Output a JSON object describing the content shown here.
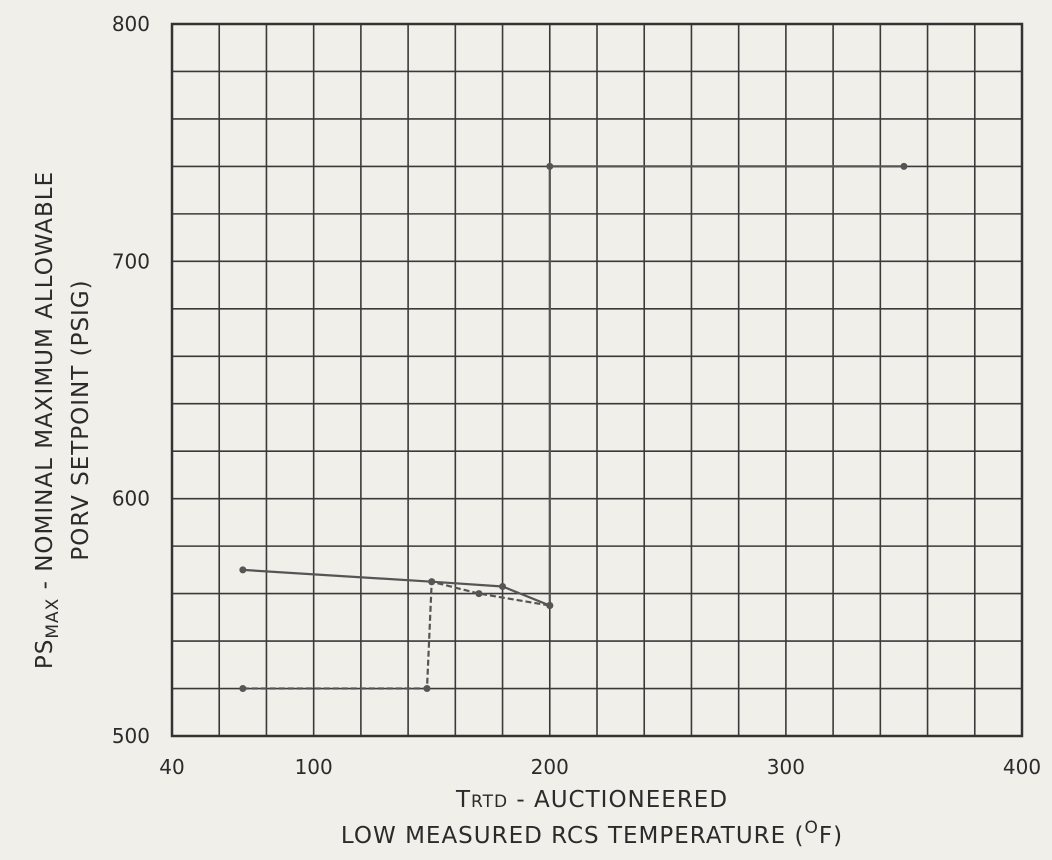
{
  "chart_data": {
    "type": "line",
    "x_axis": {
      "min": 40,
      "max": 400,
      "tick_labels": [
        {
          "value": 40,
          "label": "40"
        },
        {
          "value": 100,
          "label": "100"
        },
        {
          "value": 200,
          "label": "200"
        },
        {
          "value": 300,
          "label": "300"
        },
        {
          "value": 400,
          "label": "400"
        }
      ],
      "label_line1": {
        "lead": "T",
        "rest": "RTD",
        "tail": " - AUCTIONEERED"
      },
      "label_line2": {
        "text": "LOW MEASURED RCS TEMPERATURE (",
        "superscript": "O",
        "unit": "F",
        "close": ")"
      }
    },
    "y_axis": {
      "min": 500,
      "max": 800,
      "tick_labels": [
        {
          "value": 500,
          "label": "500"
        },
        {
          "value": 600,
          "label": "600"
        },
        {
          "value": 700,
          "label": "700"
        },
        {
          "value": 800,
          "label": "800"
        }
      ],
      "label_line1": {
        "lead": "PS",
        "subscript": "MAX",
        "tail": " - NOMINAL MAXIMUM ALLOWABLE"
      },
      "label_line2": {
        "text": "PORV SETPOINT (PSIG)"
      }
    },
    "grid": true,
    "grid_x_step": 20,
    "grid_y_step": 20,
    "series": [
      {
        "style": "solid",
        "points": [
          {
            "x": 70,
            "y": 570
          },
          {
            "x": 150,
            "y": 565
          },
          {
            "x": 180,
            "y": 563
          },
          {
            "x": 200,
            "y": 555
          },
          {
            "x": 200,
            "y": 740
          },
          {
            "x": 350,
            "y": 740
          }
        ]
      },
      {
        "style": "dashed",
        "points": [
          {
            "x": 70,
            "y": 520
          },
          {
            "x": 148,
            "y": 520
          },
          {
            "x": 150,
            "y": 565
          },
          {
            "x": 170,
            "y": 560
          },
          {
            "x": 200,
            "y": 555
          }
        ]
      }
    ],
    "colors": {
      "line": "#555555",
      "grid": "#3a3a3a",
      "text": "#2b2b2b",
      "background": "#f1efe9"
    }
  }
}
